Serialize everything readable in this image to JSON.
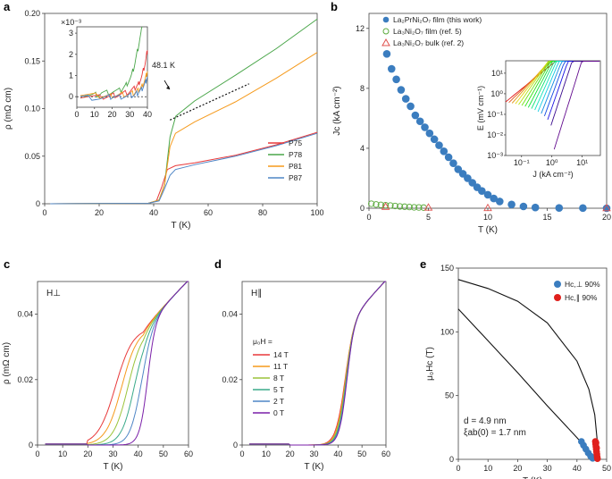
{
  "panels": {
    "a": "a",
    "b": "b",
    "c": "c",
    "d": "d",
    "e": "e"
  },
  "chart_data": [
    {
      "id": "a",
      "type": "line",
      "xlabel": "T (K)",
      "ylabel": "ρ (mΩ cm)",
      "xlim": [
        0,
        100
      ],
      "ylim": [
        0,
        0.2
      ],
      "xticks": [
        "0",
        "20",
        "40",
        "60",
        "80",
        "100"
      ],
      "yticks": [
        "0",
        "0.05",
        "0.10",
        "0.15",
        "0.20"
      ],
      "annotation": "48.1 K",
      "series": [
        {
          "name": "P75",
          "color": "#e8393a",
          "points": [
            [
              2,
              0
            ],
            [
              38,
              0.0005
            ],
            [
              41,
              0.003
            ],
            [
              43,
              0.018
            ],
            [
              45,
              0.036
            ],
            [
              48,
              0.04
            ],
            [
              55,
              0.043
            ],
            [
              70,
              0.051
            ],
            [
              85,
              0.062
            ],
            [
              100,
              0.075
            ]
          ]
        },
        {
          "name": "P78",
          "color": "#4aa64a",
          "points": [
            [
              2,
              0
            ],
            [
              38,
              0.0005
            ],
            [
              42,
              0.004
            ],
            [
              44,
              0.02
            ],
            [
              46,
              0.07
            ],
            [
              48.1,
              0.092
            ],
            [
              55,
              0.108
            ],
            [
              70,
              0.135
            ],
            [
              85,
              0.163
            ],
            [
              100,
              0.194
            ]
          ]
        },
        {
          "name": "P81",
          "color": "#f59a1c",
          "points": [
            [
              2,
              0
            ],
            [
              38,
              0.0005
            ],
            [
              42,
              0.004
            ],
            [
              44,
              0.02
            ],
            [
              46,
              0.06
            ],
            [
              48,
              0.074
            ],
            [
              55,
              0.086
            ],
            [
              70,
              0.107
            ],
            [
              85,
              0.132
            ],
            [
              100,
              0.159
            ]
          ]
        },
        {
          "name": "P87",
          "color": "#4f86c6",
          "points": [
            [
              2,
              0
            ],
            [
              38,
              0.0005
            ],
            [
              42,
              0.003
            ],
            [
              44,
              0.016
            ],
            [
              46,
              0.03
            ],
            [
              48,
              0.036
            ],
            [
              55,
              0.041
            ],
            [
              70,
              0.05
            ],
            [
              85,
              0.061
            ],
            [
              100,
              0.074
            ]
          ]
        }
      ],
      "fit_line": {
        "points": [
          [
            46,
            0.088
          ],
          [
            75,
            0.126
          ]
        ]
      },
      "inset": {
        "xlim": [
          0,
          40
        ],
        "ylim": [
          -0.5,
          3.3
        ],
        "multiplier": "×10⁻³",
        "xticks": [
          "0",
          "10",
          "20",
          "30",
          "40"
        ],
        "yticks": [
          "0",
          "1",
          "2",
          "3"
        ],
        "series": [
          {
            "name": "P78",
            "color": "#4aa64a",
            "points": [
              [
                2,
                0.05
              ],
              [
                10,
                0.08
              ],
              [
                14,
                0.15
              ],
              [
                20,
                0.22
              ],
              [
                25,
                0.3
              ],
              [
                28,
                0.55
              ],
              [
                31,
                1.0
              ],
              [
                33,
                1.6
              ],
              [
                35,
                2.4
              ],
              [
                37,
                3.3
              ]
            ]
          },
          {
            "name": "P75",
            "color": "#e8393a",
            "points": [
              [
                2,
                0
              ],
              [
                15,
                0
              ],
              [
                20,
                0.05
              ],
              [
                25,
                0.1
              ],
              [
                30,
                0.25
              ],
              [
                33,
                0.4
              ],
              [
                35,
                0.6
              ],
              [
                37,
                1.0
              ],
              [
                39,
                1.7
              ],
              [
                40,
                2.2
              ]
            ]
          },
          {
            "name": "P81",
            "color": "#f59a1c",
            "points": [
              [
                2,
                0.05
              ],
              [
                15,
                0.05
              ],
              [
                20,
                0.05
              ],
              [
                25,
                0.1
              ],
              [
                30,
                0.12
              ],
              [
                33,
                0.2
              ],
              [
                35,
                0.3
              ],
              [
                37,
                0.5
              ],
              [
                39,
                0.9
              ],
              [
                40,
                1.2
              ]
            ]
          },
          {
            "name": "P87",
            "color": "#4f86c6",
            "points": [
              [
                2,
                -0.05
              ],
              [
                15,
                -0.05
              ],
              [
                20,
                0
              ],
              [
                25,
                0
              ],
              [
                30,
                0.05
              ],
              [
                33,
                0.1
              ],
              [
                35,
                0.2
              ],
              [
                37,
                0.35
              ],
              [
                39,
                0.7
              ],
              [
                40,
                0.95
              ]
            ]
          }
        ]
      }
    },
    {
      "id": "b",
      "type": "scatter",
      "xlabel": "T (K)",
      "ylabel": "Jc (kA cm⁻²)",
      "xlim": [
        0,
        20
      ],
      "ylim": [
        0,
        13
      ],
      "xticks": [
        "0",
        "5",
        "10",
        "15",
        "20"
      ],
      "yticks": [
        "0",
        "4",
        "8",
        "12"
      ],
      "series": [
        {
          "name": "La₂PrNi₂O₇ film (this work)",
          "marker": "circle-filled",
          "color": "#3b7dbf",
          "points": [
            [
              1.5,
              10.3
            ],
            [
              1.9,
              9.3
            ],
            [
              2.3,
              8.6
            ],
            [
              2.7,
              7.9
            ],
            [
              3.1,
              7.3
            ],
            [
              3.5,
              6.8
            ],
            [
              3.9,
              6.2
            ],
            [
              4.3,
              5.8
            ],
            [
              4.7,
              5.4
            ],
            [
              5.1,
              5.0
            ],
            [
              5.5,
              4.6
            ],
            [
              5.9,
              4.2
            ],
            [
              6.3,
              3.8
            ],
            [
              6.7,
              3.4
            ],
            [
              7.1,
              3.0
            ],
            [
              7.5,
              2.6
            ],
            [
              7.9,
              2.3
            ],
            [
              8.3,
              2.0
            ],
            [
              8.7,
              1.7
            ],
            [
              9.1,
              1.4
            ],
            [
              9.5,
              1.15
            ],
            [
              10.0,
              0.9
            ],
            [
              10.5,
              0.65
            ],
            [
              11.0,
              0.45
            ],
            [
              12.0,
              0.25
            ],
            [
              13.0,
              0.12
            ],
            [
              14.0,
              0.05
            ],
            [
              16.0,
              0.02
            ],
            [
              18.0,
              0.01
            ],
            [
              20.0,
              0.0
            ]
          ]
        },
        {
          "name": "La₃Ni₂O₇ film (ref. 5)",
          "marker": "circle-open",
          "color": "#5aaa3c",
          "points": [
            [
              0.2,
              0.3
            ],
            [
              0.6,
              0.25
            ],
            [
              1.0,
              0.22
            ],
            [
              1.4,
              0.2
            ],
            [
              1.8,
              0.18
            ],
            [
              2.2,
              0.15
            ],
            [
              2.6,
              0.12
            ],
            [
              3.0,
              0.1
            ],
            [
              3.4,
              0.08
            ],
            [
              3.8,
              0.06
            ],
            [
              4.2,
              0.05
            ],
            [
              4.6,
              0.04
            ]
          ]
        },
        {
          "name": "La₃Ni₂O₇ bulk (ref. 2)",
          "marker": "triangle-open",
          "color": "#e0504c",
          "points": [
            [
              1.4,
              0.1
            ],
            [
              5.0,
              0.05
            ],
            [
              10.0,
              0.02
            ],
            [
              20.0,
              0.01
            ]
          ]
        }
      ],
      "inset": {
        "xlabel": "J (kA cm⁻²)",
        "ylabel": "E (mV cm⁻¹)",
        "xscale": "log",
        "yscale": "log",
        "xlim": [
          0.03,
          40
        ],
        "ylim": [
          0.001,
          40
        ],
        "xticks": [
          "10⁻¹",
          "10⁰",
          "10¹"
        ],
        "yticks": [
          "10⁻³",
          "10⁻²",
          "10⁻¹",
          "10⁰",
          "10¹"
        ],
        "curve_count": 16
      }
    },
    {
      "id": "c",
      "type": "line",
      "xlabel": "T (K)",
      "ylabel": "ρ (mΩ cm)",
      "label": "H⊥",
      "xlim": [
        0,
        60
      ],
      "ylim": [
        0,
        0.05
      ],
      "xticks": [
        "0",
        "10",
        "20",
        "30",
        "40",
        "50",
        "60"
      ],
      "yticks": [
        "0",
        "0.02",
        "0.04"
      ],
      "series": [
        {
          "name": "14 T",
          "color": "#e8393a",
          "tc_mid": 31,
          "width": 3.5
        },
        {
          "name": "11 T",
          "color": "#f59a1c",
          "tc_mid": 33.5,
          "width": 3.2
        },
        {
          "name": "8 T",
          "color": "#9bc43a",
          "tc_mid": 36,
          "width": 2.9
        },
        {
          "name": "5 T",
          "color": "#3aaa8a",
          "tc_mid": 38.5,
          "width": 2.6
        },
        {
          "name": "2 T",
          "color": "#4f86c6",
          "tc_mid": 41,
          "width": 2.2
        },
        {
          "name": "0 T",
          "color": "#7a1fa8",
          "tc_mid": 43.5,
          "width": 1.6
        }
      ]
    },
    {
      "id": "d",
      "type": "line",
      "xlabel": "T (K)",
      "ylabel": "",
      "label": "H∥",
      "legend_title": "μ₀H =",
      "xlim": [
        0,
        60
      ],
      "ylim": [
        0,
        0.05
      ],
      "xticks": [
        "0",
        "10",
        "20",
        "30",
        "40",
        "50",
        "60"
      ],
      "yticks": [
        "0",
        "0.02",
        "0.04"
      ],
      "series": [
        {
          "name": "14 T",
          "color": "#e8393a",
          "tc_mid": 42.6,
          "width": 1.9
        },
        {
          "name": "11 T",
          "color": "#f59a1c",
          "tc_mid": 42.8,
          "width": 1.8
        },
        {
          "name": "8 T",
          "color": "#9bc43a",
          "tc_mid": 43.0,
          "width": 1.75
        },
        {
          "name": "5 T",
          "color": "#3aaa8a",
          "tc_mid": 43.2,
          "width": 1.7
        },
        {
          "name": "2 T",
          "color": "#4f86c6",
          "tc_mid": 43.4,
          "width": 1.65
        },
        {
          "name": "0 T",
          "color": "#7a1fa8",
          "tc_mid": 43.5,
          "width": 1.6
        }
      ]
    },
    {
      "id": "e",
      "type": "scatter",
      "xlabel": "T (K)",
      "ylabel": "μ₀Hc (T)",
      "xlim": [
        0,
        50
      ],
      "ylim": [
        0,
        150
      ],
      "xticks": [
        "0",
        "10",
        "20",
        "30",
        "40",
        "50"
      ],
      "yticks": [
        "0",
        "50",
        "100",
        "150"
      ],
      "legend": [
        {
          "name": "Hc,⊥ 90%",
          "color": "#3b7dbf"
        },
        {
          "name": "Hc,∥ 90%",
          "color": "#e0201c"
        }
      ],
      "annotation_d": "d = 4.9 nm",
      "annotation_xi": "ξab(0) = 1.7 nm",
      "perp_points": [
        [
          41.5,
          14
        ],
        [
          42.2,
          11
        ],
        [
          43.0,
          8
        ],
        [
          43.8,
          5
        ],
        [
          44.6,
          2.5
        ],
        [
          45.3,
          0.8
        ]
      ],
      "par_points": [
        [
          46.2,
          14
        ],
        [
          46.3,
          12
        ],
        [
          46.4,
          10
        ],
        [
          46.5,
          8
        ],
        [
          46.6,
          6
        ],
        [
          46.7,
          4
        ],
        [
          46.8,
          2
        ],
        [
          46.9,
          0.6
        ],
        [
          46.4,
          13
        ],
        [
          46.6,
          9
        ]
      ],
      "fits": [
        {
          "name": "perp",
          "points": [
            [
              0,
              118
            ],
            [
              10,
              93
            ],
            [
              20,
              68
            ],
            [
              30,
              42
            ],
            [
              40,
              17
            ],
            [
              46.5,
              0
            ]
          ]
        },
        {
          "name": "parallel",
          "points": [
            [
              0,
              141
            ],
            [
              10,
              134
            ],
            [
              20,
              124
            ],
            [
              30,
              107
            ],
            [
              40,
              77
            ],
            [
              44,
              55
            ],
            [
              46,
              35
            ],
            [
              46.8,
              15
            ],
            [
              47,
              0
            ]
          ]
        }
      ]
    }
  ]
}
